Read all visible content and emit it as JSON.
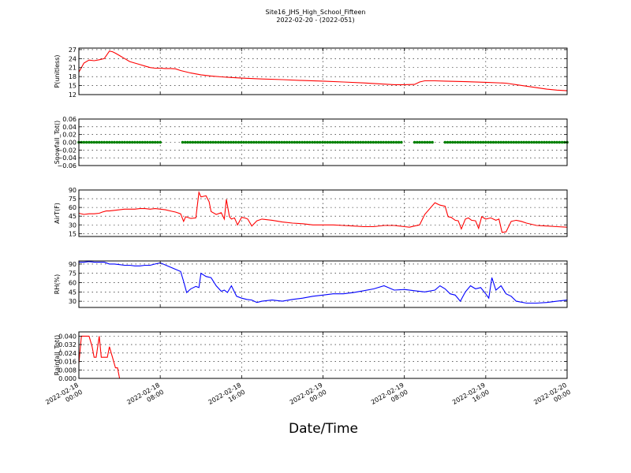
{
  "figure": {
    "title": "Site16_JHS_High_School_Fifteen",
    "subtitle": "2022-02-20 - (2022-051)",
    "xlabel": "Date/Time"
  },
  "chart_data": [
    {
      "type": "line",
      "name": "pressure",
      "ylabel": "P(unitless)",
      "color": "#ff0000",
      "ylim": [
        12,
        27.5
      ],
      "yticks": [
        12,
        15,
        18,
        21,
        24,
        27
      ],
      "ytick_labels": [
        "12",
        "15",
        "18",
        "21",
        "24",
        "27"
      ],
      "grid": true,
      "x_hours": [
        0,
        0.5,
        1,
        1.5,
        2,
        2.5,
        3,
        3.3,
        3.6,
        4,
        4.5,
        5,
        5.5,
        6,
        6.5,
        7,
        7.5,
        8,
        8.5,
        9,
        9.5,
        10,
        11,
        12,
        13,
        14,
        15,
        16,
        18,
        20,
        22,
        24,
        26,
        28,
        30,
        31,
        32,
        33,
        33.5,
        34,
        35,
        36,
        38,
        40,
        42,
        43,
        44,
        45,
        46,
        47,
        48
      ],
      "y": [
        19.5,
        22.5,
        23.5,
        23.3,
        23.6,
        24,
        26.5,
        26.3,
        25.8,
        25,
        24,
        23,
        22.5,
        22,
        21.5,
        21,
        20.8,
        20.8,
        20.7,
        20.7,
        20.6,
        20,
        19.2,
        18.6,
        18.2,
        17.9,
        17.7,
        17.5,
        17.2,
        17,
        16.7,
        16.5,
        16.2,
        15.9,
        15.5,
        15.3,
        15.3,
        15.4,
        16.2,
        16.6,
        16.6,
        16.5,
        16.3,
        16.1,
        15.8,
        15.3,
        14.8,
        14.3,
        13.8,
        13.5,
        13.3
      ]
    },
    {
      "type": "scatter",
      "name": "snowfall",
      "ylabel": "Snowfall_Tot()",
      "color": "#008000",
      "ylim": [
        -0.06,
        0.06
      ],
      "yticks": [
        -0.06,
        -0.04,
        -0.02,
        0.0,
        0.02,
        0.04,
        0.06
      ],
      "ytick_labels": [
        "−0.06",
        "−0.04",
        "−0.02",
        "0.00",
        "0.02",
        "0.04",
        "0.06"
      ],
      "grid": true,
      "value": 0.0,
      "segments_hours": [
        [
          0,
          8
        ],
        [
          10.2,
          31.8
        ],
        [
          33,
          34.8
        ],
        [
          36,
          48
        ]
      ]
    },
    {
      "type": "line",
      "name": "air_temperature",
      "ylabel": "AirT(F)",
      "color": "#ff0000",
      "ylim": [
        10,
        90
      ],
      "yticks": [
        15,
        30,
        45,
        60,
        75,
        90
      ],
      "ytick_labels": [
        "15",
        "30",
        "45",
        "60",
        "75",
        "90"
      ],
      "grid": true,
      "x_hours": [
        0,
        0.5,
        1,
        1.5,
        2,
        2.3,
        2.7,
        3,
        3.5,
        4,
        4.5,
        5,
        5.5,
        6,
        6.5,
        7,
        7.5,
        8,
        8.5,
        9,
        9.5,
        10,
        10.3,
        10.5,
        11,
        11.5,
        11.8,
        12,
        12.5,
        12.8,
        13,
        13.5,
        14,
        14.3,
        14.5,
        14.8,
        15,
        15.3,
        15.6,
        16,
        16.3,
        16.6,
        17,
        17.5,
        18,
        19,
        20,
        21,
        22,
        23,
        24,
        25,
        26,
        27,
        28,
        29,
        30,
        31,
        32,
        32.5,
        33,
        33.5,
        34,
        35,
        35.5,
        36,
        36.3,
        36.6,
        37,
        37.3,
        37.6,
        38,
        38.3,
        38.6,
        39,
        39.3,
        39.6,
        40,
        40.5,
        41,
        41.3,
        41.6,
        42,
        42.5,
        43,
        43.5,
        44,
        44.5,
        45,
        46,
        47,
        48
      ],
      "y": [
        50,
        48,
        49,
        49,
        50,
        52,
        54,
        54,
        55,
        56,
        57,
        57,
        57,
        58,
        58,
        57,
        58,
        57,
        56,
        54,
        52,
        49,
        36,
        44,
        41,
        42,
        86,
        78,
        80,
        70,
        53,
        48,
        51,
        40,
        74,
        44,
        40,
        42,
        30,
        43,
        42,
        40,
        28,
        37,
        40,
        38,
        35,
        33,
        32,
        30,
        30,
        30,
        29,
        28,
        27,
        27,
        29,
        29,
        27,
        26,
        28,
        30,
        48,
        68,
        64,
        62,
        44,
        43,
        38,
        37,
        23,
        40,
        42,
        38,
        37,
        24,
        44,
        40,
        42,
        38,
        40,
        17,
        18,
        36,
        38,
        36,
        33,
        31,
        29,
        28,
        27,
        26
      ]
    },
    {
      "type": "line",
      "name": "relative_humidity",
      "ylabel": "RH(%)",
      "color": "#0000ff",
      "ylim": [
        20,
        95
      ],
      "yticks": [
        30,
        45,
        60,
        75,
        90
      ],
      "ytick_labels": [
        "30",
        "45",
        "60",
        "75",
        "90"
      ],
      "grid": true,
      "x_hours": [
        0,
        0.5,
        1,
        1.5,
        2,
        2.5,
        3,
        3.5,
        4,
        4.5,
        5,
        5.5,
        6,
        6.5,
        7,
        7.5,
        8,
        9,
        10,
        10.3,
        10.6,
        11,
        11.5,
        11.8,
        12,
        12.5,
        13,
        13.5,
        14,
        14.3,
        14.6,
        15,
        15.5,
        16,
        16.5,
        17,
        17.5,
        18,
        19,
        20,
        21,
        22,
        23,
        24,
        25,
        26,
        27,
        28,
        29,
        30,
        31,
        32,
        33,
        34,
        35,
        35.5,
        36,
        36.5,
        37,
        37.5,
        38,
        38.5,
        39,
        39.5,
        40,
        40.3,
        40.6,
        41,
        41.5,
        42,
        42.5,
        43,
        44,
        45,
        46,
        47,
        48
      ],
      "y": [
        93,
        93,
        94,
        93,
        93,
        93,
        90,
        90,
        89,
        88,
        88,
        87,
        87,
        88,
        88,
        90,
        92,
        85,
        78,
        62,
        44,
        50,
        54,
        52,
        75,
        70,
        68,
        55,
        46,
        48,
        44,
        55,
        38,
        35,
        33,
        32,
        28,
        30,
        32,
        30,
        33,
        35,
        38,
        40,
        42,
        42,
        44,
        47,
        50,
        55,
        48,
        49,
        47,
        45,
        48,
        55,
        50,
        42,
        40,
        30,
        45,
        55,
        50,
        52,
        42,
        35,
        68,
        48,
        55,
        42,
        38,
        30,
        27,
        27,
        28,
        30,
        32
      ]
    },
    {
      "type": "line",
      "name": "rainfall",
      "ylabel": "Rainfall_Tot()",
      "color": "#ff0000",
      "ylim": [
        0,
        0.044
      ],
      "yticks": [
        0,
        0.008,
        0.016,
        0.024,
        0.032,
        0.04
      ],
      "ytick_labels": [
        "0.000",
        "0.008",
        "0.016",
        "0.024",
        "0.032",
        "0.040"
      ],
      "grid": true,
      "x_hours": [
        0,
        0.25,
        0.5,
        1,
        1.3,
        1.5,
        1.7,
        2,
        2.2,
        2.5,
        2.8,
        3,
        3.3,
        3.6,
        3.8,
        4,
        48
      ],
      "y": [
        0.014,
        0.04,
        0.04,
        0.04,
        0.03,
        0.02,
        0.02,
        0.04,
        0.02,
        0.02,
        0.02,
        0.03,
        0.02,
        0.01,
        0.01,
        0.0,
        0.0
      ]
    }
  ],
  "x_axis": {
    "range_hours": [
      0,
      48
    ],
    "tick_hours": [
      0,
      8,
      16,
      24,
      32,
      40,
      48
    ],
    "tick_labels": [
      [
        "2022-02-18",
        "00:00"
      ],
      [
        "2022-02-18",
        "08:00"
      ],
      [
        "2022-02-18",
        "16:00"
      ],
      [
        "2022-02-19",
        "00:00"
      ],
      [
        "2022-02-19",
        "08:00"
      ],
      [
        "2022-02-19",
        "16:00"
      ],
      [
        "2022-02-20",
        "00:00"
      ]
    ]
  }
}
